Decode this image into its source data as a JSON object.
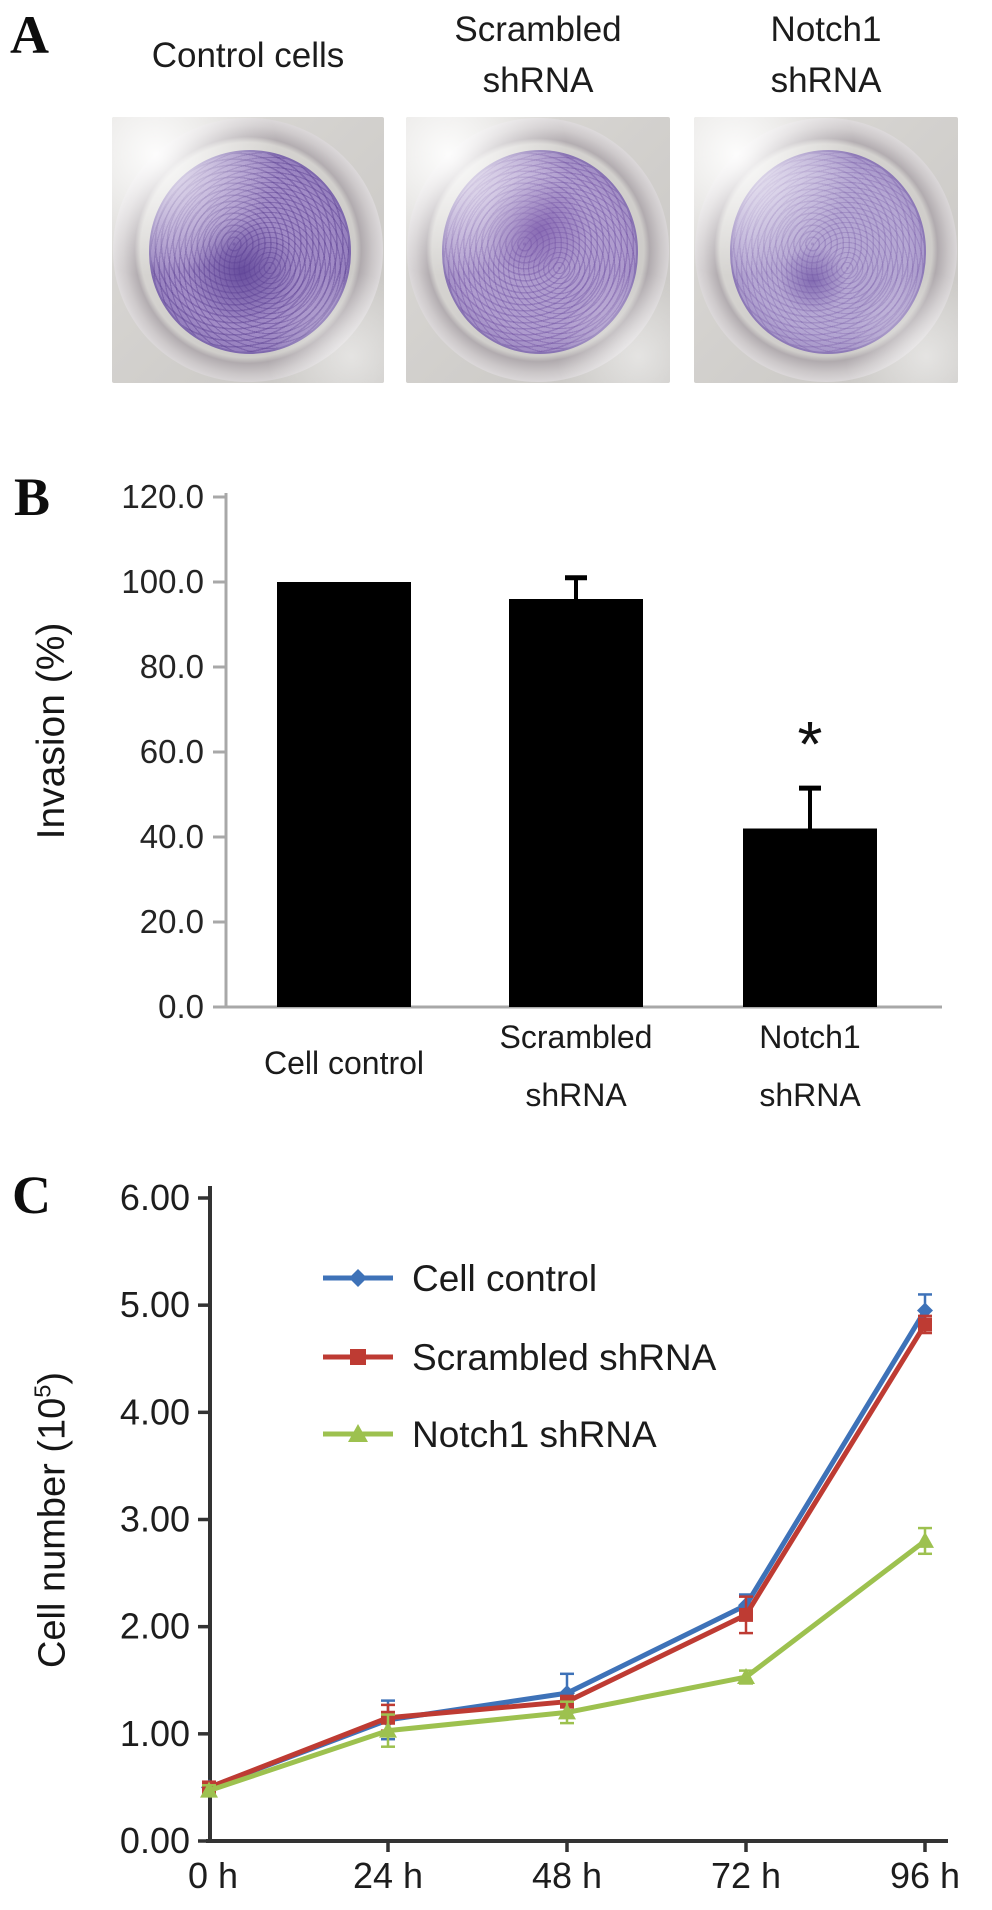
{
  "figure": {
    "background": "#ffffff",
    "text_color": "#1a1a1a"
  },
  "panels": {
    "a": {
      "label": "A",
      "columns": [
        {
          "title_line1": "Control cells",
          "title_line2": "",
          "photo": {
            "membrane_base": "#a18bc6",
            "membrane_edge": "#7e68ad",
            "blotch_color": "rgba(93,66,150,0.85)",
            "blotch_x": "46%",
            "blotch_y": "60%",
            "blotch_r": "34%",
            "speckle": "rgba(84,56,140,0.38)"
          }
        },
        {
          "title_line1": "Scrambled",
          "title_line2": "shRNA",
          "photo": {
            "membrane_base": "#af9cce",
            "membrane_edge": "#8873b3",
            "blotch_color": "rgba(122,88,170,0.75)",
            "blotch_x": "48%",
            "blotch_y": "38%",
            "blotch_r": "33%",
            "speckle": "rgba(104,70,156,0.34)"
          }
        },
        {
          "title_line1": "Notch1",
          "title_line2": "shRNA",
          "photo": {
            "membrane_base": "#b5a7d3",
            "membrane_edge": "#8d79b7",
            "blotch_color": "rgba(104,76,160,0.65)",
            "blotch_x": "42%",
            "blotch_y": "64%",
            "blotch_r": "20%",
            "speckle": "rgba(110,78,160,0.26)"
          }
        }
      ]
    },
    "b": {
      "label": "B",
      "ylabel": "Invasion (%)"
    },
    "c": {
      "label": "C",
      "ylabel_prefix": "Cell number (10",
      "ylabel_sup": "5",
      "ylabel_suffix": ")"
    }
  },
  "chart_data": [
    {
      "id": "invasion_bar",
      "type": "bar",
      "panel": "B",
      "categories": [
        "Cell control",
        "Scrambled shRNA",
        "Notch1 shRNA"
      ],
      "category_label_lines": [
        [
          "Cell control"
        ],
        [
          "Scrambled",
          "shRNA"
        ],
        [
          "Notch1",
          "shRNA"
        ]
      ],
      "values": [
        100.0,
        96.0,
        42.0
      ],
      "errors_up": [
        0,
        5.0,
        9.5
      ],
      "significance": [
        "",
        "",
        "*"
      ],
      "ylabel": "Invasion (%)",
      "ylim": [
        0,
        120
      ],
      "ytick_step": 20,
      "ytick_decimals": 1,
      "bar_color": "#000000",
      "axis_color": "#a8a8a8",
      "grid": false,
      "legend": "none"
    },
    {
      "id": "growth_line",
      "type": "line",
      "panel": "C",
      "x": [
        0,
        24,
        48,
        72,
        96
      ],
      "xtick_labels": [
        "0 h",
        "24 h",
        "48 h",
        "72 h",
        "96 h"
      ],
      "series": [
        {
          "name": "Cell control",
          "color": "#3e72b8",
          "marker": "diamond",
          "values": [
            0.5,
            1.13,
            1.38,
            2.2,
            4.95
          ],
          "errors": [
            0.05,
            0.18,
            0.18,
            0.1,
            0.15
          ]
        },
        {
          "name": "Scrambled shRNA",
          "color": "#be3b33",
          "marker": "square",
          "values": [
            0.5,
            1.15,
            1.3,
            2.11,
            4.82
          ],
          "errors": [
            0.05,
            0.12,
            0.05,
            0.17,
            0.08
          ]
        },
        {
          "name": "Notch1 shRNA",
          "color": "#9dc14f",
          "marker": "triangle",
          "values": [
            0.47,
            1.03,
            1.2,
            1.53,
            2.8
          ],
          "errors": [
            0.05,
            0.15,
            0.1,
            0.06,
            0.12
          ]
        }
      ],
      "ylim": [
        0,
        6
      ],
      "ytick_step": 1,
      "ytick_decimals": 2,
      "axis_color": "#333333",
      "grid": false,
      "legend_position": "upper-left-inside"
    }
  ]
}
